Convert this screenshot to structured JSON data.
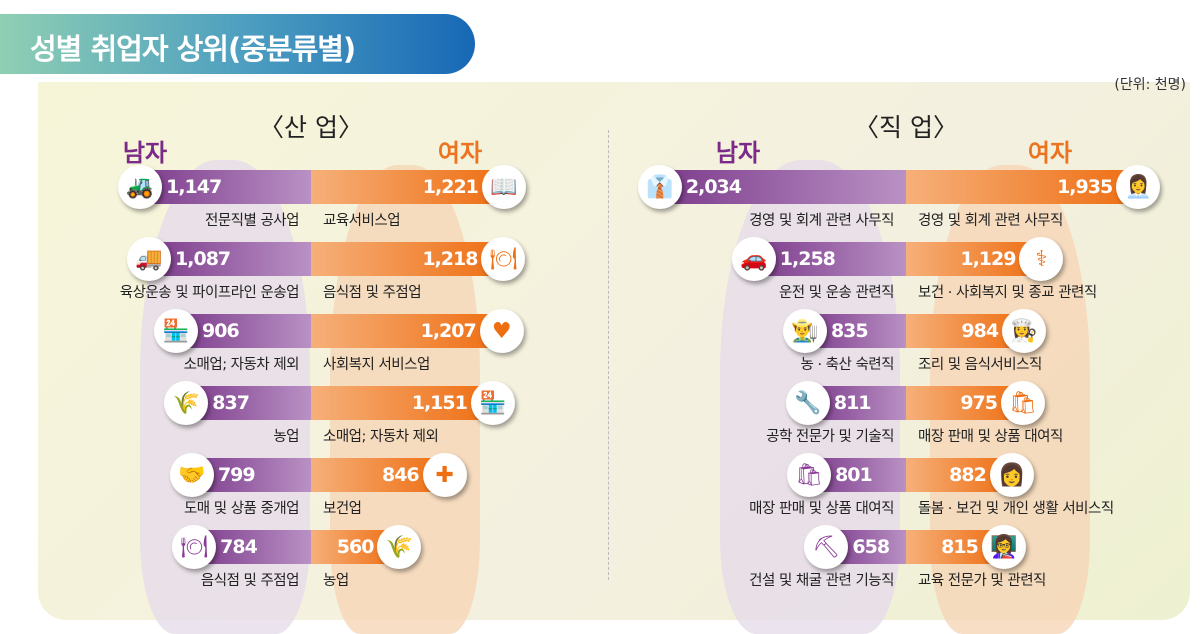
{
  "title": "성별 취업자 상위(중분류별)",
  "unit": "(단위: 천명)",
  "colors": {
    "male": "#7b2a87",
    "female": "#ec7420"
  },
  "chart_data": [
    {
      "type": "bar",
      "title": "〈산 업〉",
      "male_label": "남자",
      "female_label": "여자",
      "male": [
        {
          "category": "전문직별 공사업",
          "value": 1147,
          "value_label": "1,147",
          "icon": "excavator-icon",
          "glyph": "🚜"
        },
        {
          "category": "육상운송 및 파이프라인 운송업",
          "value": 1087,
          "value_label": "1,087",
          "icon": "truck-icon",
          "glyph": "🚚"
        },
        {
          "category": "소매업; 자동차 제외",
          "value": 906,
          "value_label": "906",
          "icon": "store-icon",
          "glyph": "🏪"
        },
        {
          "category": "농업",
          "value": 837,
          "value_label": "837",
          "icon": "wheat-icon",
          "glyph": "🌾"
        },
        {
          "category": "도매 및 상품 중개업",
          "value": 799,
          "value_label": "799",
          "icon": "handshake-icon",
          "glyph": "🤝"
        },
        {
          "category": "음식점 및 주점업",
          "value": 784,
          "value_label": "784",
          "icon": "plate-icon",
          "glyph": "🍽"
        }
      ],
      "female": [
        {
          "category": "교육서비스업",
          "value": 1221,
          "value_label": "1,221",
          "icon": "book-icon",
          "glyph": "📖"
        },
        {
          "category": "음식점 및 주점업",
          "value": 1218,
          "value_label": "1,218",
          "icon": "plate-icon",
          "glyph": "🍽"
        },
        {
          "category": "사회복지 서비스업",
          "value": 1207,
          "value_label": "1,207",
          "icon": "heart-hands-icon",
          "glyph": "♥"
        },
        {
          "category": "소매업; 자동차 제외",
          "value": 1151,
          "value_label": "1,151",
          "icon": "store-icon",
          "glyph": "🏪"
        },
        {
          "category": "보건업",
          "value": 846,
          "value_label": "846",
          "icon": "first-aid-icon",
          "glyph": "✚"
        },
        {
          "category": "농업",
          "value": 560,
          "value_label": "560",
          "icon": "wheat-icon",
          "glyph": "🌾"
        }
      ]
    },
    {
      "type": "bar",
      "title": "〈직 업〉",
      "male_label": "남자",
      "female_label": "여자",
      "male": [
        {
          "category": "경영 및 회계 관련 사무직",
          "value": 2034,
          "value_label": "2,034",
          "icon": "office-worker-icon",
          "glyph": "👔"
        },
        {
          "category": "운전 및 운송 관련직",
          "value": 1258,
          "value_label": "1,258",
          "icon": "driver-icon",
          "glyph": "🚗"
        },
        {
          "category": "농 · 축산 숙련직",
          "value": 835,
          "value_label": "835",
          "icon": "farmer-icon",
          "glyph": "👨‍🌾"
        },
        {
          "category": "공학 전문가 및 기술직",
          "value": 811,
          "value_label": "811",
          "icon": "engineer-icon",
          "glyph": "🔧"
        },
        {
          "category": "매장 판매 및 상품 대여직",
          "value": 801,
          "value_label": "801",
          "icon": "salesperson-icon",
          "glyph": "🛍"
        },
        {
          "category": "건설 및 채굴 관련 기능직",
          "value": 658,
          "value_label": "658",
          "icon": "construction-worker-icon",
          "glyph": "⛏"
        }
      ],
      "female": [
        {
          "category": "경영 및 회계 관련 사무직",
          "value": 1935,
          "value_label": "1,935",
          "icon": "office-worker-icon",
          "glyph": "👩‍💼"
        },
        {
          "category": "보건 · 사회복지 및 종교 관련직",
          "value": 1129,
          "value_label": "1,129",
          "icon": "doctor-icon",
          "glyph": "⚕"
        },
        {
          "category": "조리 및 음식서비스직",
          "value": 984,
          "value_label": "984",
          "icon": "chef-icon",
          "glyph": "👩‍🍳"
        },
        {
          "category": "매장 판매 및 상품 대여직",
          "value": 975,
          "value_label": "975",
          "icon": "salesperson-icon",
          "glyph": "🛍"
        },
        {
          "category": "돌봄 · 보건 및 개인 생활 서비스직",
          "value": 882,
          "value_label": "882",
          "icon": "caregiver-icon",
          "glyph": "👩"
        },
        {
          "category": "교육 전문가 및 관련직",
          "value": 815,
          "value_label": "815",
          "icon": "teacher-icon",
          "glyph": "👩‍🏫"
        }
      ]
    }
  ]
}
